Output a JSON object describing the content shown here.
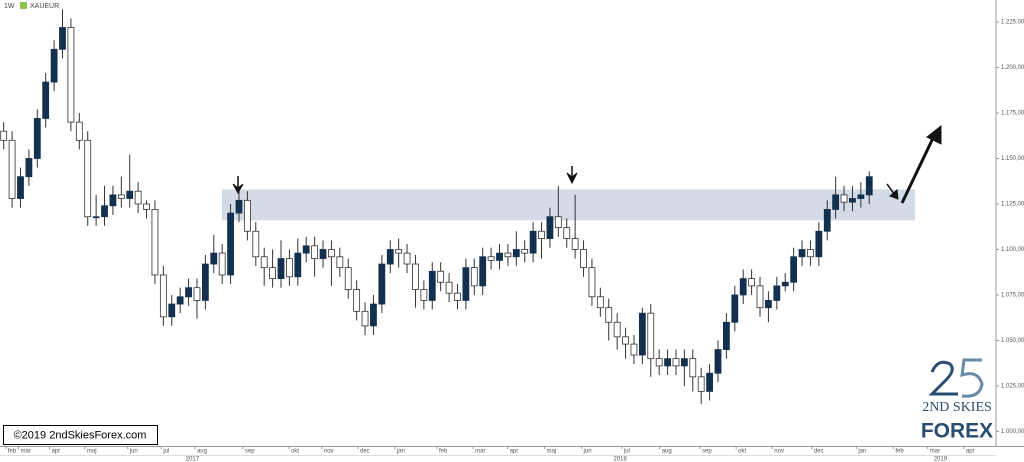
{
  "chart_data": {
    "type": "candlestick",
    "title": "1W",
    "subtitle": "XAUEUR",
    "open": [
      1165,
      1160,
      1128,
      1140,
      1150,
      1172,
      1192,
      1210,
      1222,
      1170,
      1160,
      1118,
      1118,
      1124,
      1130,
      1128,
      1132,
      1125,
      1122,
      1086,
      1063,
      1070,
      1074,
      1079,
      1072,
      1092,
      1098,
      1086,
      1120,
      1127,
      1110,
      1096,
      1090,
      1084,
      1095,
      1085,
      1098,
      1102,
      1095,
      1100,
      1096,
      1090,
      1078,
      1066,
      1058,
      1070,
      1092,
      1100,
      1098,
      1092,
      1078,
      1072,
      1088,
      1082,
      1076,
      1072,
      1090,
      1080,
      1096,
      1094,
      1098,
      1096,
      1100,
      1098,
      1110,
      1106,
      1118,
      1112,
      1106,
      1100,
      1090,
      1074,
      1068,
      1060,
      1052,
      1048,
      1042,
      1065,
      1040,
      1036,
      1040,
      1036,
      1040,
      1030,
      1022,
      1032,
      1045,
      1060,
      1075,
      1084,
      1080,
      1068,
      1072,
      1080,
      1082,
      1096,
      1100,
      1096,
      1110,
      1122,
      1130,
      1126,
      1128,
      1130
    ],
    "high": [
      1170,
      1165,
      1145,
      1155,
      1177,
      1197,
      1215,
      1232,
      1227,
      1175,
      1165,
      1130,
      1135,
      1135,
      1140,
      1152,
      1137,
      1127,
      1127,
      1091,
      1075,
      1079,
      1084,
      1084,
      1097,
      1108,
      1103,
      1125,
      1132,
      1132,
      1115,
      1101,
      1100,
      1105,
      1100,
      1106,
      1107,
      1107,
      1105,
      1105,
      1101,
      1095,
      1083,
      1071,
      1075,
      1097,
      1105,
      1106,
      1103,
      1097,
      1083,
      1093,
      1093,
      1087,
      1081,
      1095,
      1095,
      1101,
      1101,
      1103,
      1103,
      1110,
      1105,
      1115,
      1115,
      1123,
      1135,
      1117,
      1130,
      1105,
      1095,
      1079,
      1073,
      1065,
      1057,
      1053,
      1068,
      1070,
      1045,
      1045,
      1045,
      1045,
      1045,
      1035,
      1037,
      1050,
      1065,
      1080,
      1089,
      1089,
      1085,
      1077,
      1085,
      1087,
      1101,
      1105,
      1105,
      1115,
      1127,
      1140,
      1135,
      1135,
      1137,
      1143
    ],
    "low": [
      1155,
      1123,
      1123,
      1135,
      1145,
      1167,
      1187,
      1205,
      1165,
      1155,
      1113,
      1113,
      1113,
      1119,
      1123,
      1123,
      1120,
      1117,
      1081,
      1058,
      1058,
      1065,
      1069,
      1062,
      1067,
      1087,
      1081,
      1081,
      1115,
      1105,
      1091,
      1080,
      1079,
      1079,
      1080,
      1080,
      1093,
      1085,
      1090,
      1080,
      1085,
      1073,
      1061,
      1053,
      1053,
      1065,
      1087,
      1090,
      1087,
      1068,
      1067,
      1067,
      1077,
      1071,
      1067,
      1067,
      1075,
      1075,
      1089,
      1089,
      1091,
      1091,
      1093,
      1093,
      1095,
      1101,
      1107,
      1101,
      1095,
      1085,
      1069,
      1063,
      1050,
      1045,
      1040,
      1037,
      1037,
      1030,
      1031,
      1031,
      1031,
      1025,
      1022,
      1015,
      1017,
      1027,
      1040,
      1055,
      1070,
      1075,
      1063,
      1060,
      1067,
      1077,
      1077,
      1091,
      1091,
      1091,
      1105,
      1117,
      1121,
      1121,
      1123,
      1125
    ],
    "close": [
      1160,
      1128,
      1140,
      1150,
      1172,
      1192,
      1210,
      1222,
      1170,
      1160,
      1118,
      1118,
      1124,
      1130,
      1128,
      1132,
      1125,
      1122,
      1086,
      1063,
      1070,
      1074,
      1079,
      1072,
      1092,
      1098,
      1086,
      1120,
      1127,
      1110,
      1096,
      1090,
      1084,
      1095,
      1085,
      1098,
      1102,
      1095,
      1100,
      1096,
      1090,
      1078,
      1066,
      1058,
      1070,
      1092,
      1100,
      1098,
      1092,
      1078,
      1072,
      1088,
      1082,
      1076,
      1072,
      1090,
      1080,
      1096,
      1094,
      1098,
      1096,
      1100,
      1098,
      1110,
      1106,
      1118,
      1112,
      1106,
      1100,
      1090,
      1074,
      1068,
      1060,
      1052,
      1048,
      1042,
      1065,
      1040,
      1036,
      1040,
      1036,
      1040,
      1030,
      1022,
      1032,
      1045,
      1060,
      1075,
      1084,
      1080,
      1068,
      1072,
      1080,
      1082,
      1096,
      1100,
      1096,
      1110,
      1122,
      1130,
      1126,
      1128,
      1130,
      1140
    ],
    "up_color": "#13304f",
    "down_color": "#ffffff",
    "zone": {
      "low": 1116,
      "high": 1133,
      "color": "#d3dce6"
    },
    "ylim": [
      992,
      1237.1
    ],
    "yticks": [
      {
        "value": 1000,
        "label": "1.000,00"
      },
      {
        "value": 1025,
        "label": "1.025,00"
      },
      {
        "value": 1050,
        "label": "1.050,00"
      },
      {
        "value": 1075,
        "label": "1.075,00"
      },
      {
        "value": 1100,
        "label": "1.100,00"
      },
      {
        "value": 1125,
        "label": "1.125,00"
      },
      {
        "value": 1150,
        "label": "1.150,00"
      },
      {
        "value": 1175,
        "label": "1.175,00"
      },
      {
        "value": 1200,
        "label": "1.200,00"
      },
      {
        "value": 1225,
        "label": "1.225,00"
      }
    ],
    "xlim": [
      -0.2,
      118.2
    ],
    "xticks": [
      {
        "value": 0.5,
        "label": "feb"
      },
      {
        "value": 2.0,
        "label": "mar"
      },
      {
        "value": 5.7,
        "label": "apr"
      },
      {
        "value": 9.9,
        "label": "maj"
      },
      {
        "value": 15.0,
        "label": "jun"
      },
      {
        "value": 19.0,
        "label": "jul"
      },
      {
        "value": 23.0,
        "label": "aug"
      },
      {
        "value": 28.7,
        "label": "sep"
      },
      {
        "value": 34.2,
        "label": "okt"
      },
      {
        "value": 38.1,
        "label": "nov"
      },
      {
        "value": 42.4,
        "label": "dec"
      },
      {
        "value": 46.8,
        "label": "jan"
      },
      {
        "value": 51.8,
        "label": "feb"
      },
      {
        "value": 56.1,
        "label": "mar"
      },
      {
        "value": 60.2,
        "label": "apr"
      },
      {
        "value": 64.6,
        "label": "maj"
      },
      {
        "value": 69.0,
        "label": "jun"
      },
      {
        "value": 73.8,
        "label": "jul"
      },
      {
        "value": 78.3,
        "label": "aug"
      },
      {
        "value": 83.1,
        "label": "sep"
      },
      {
        "value": 87.4,
        "label": "okt"
      },
      {
        "value": 91.7,
        "label": "nov"
      },
      {
        "value": 96.4,
        "label": "dec"
      },
      {
        "value": 101.7,
        "label": "jan"
      },
      {
        "value": 106.1,
        "label": "feb"
      },
      {
        "value": 110.2,
        "label": "mar"
      },
      {
        "value": 114.5,
        "label": "apr"
      }
    ],
    "year_ticks": [
      {
        "value": 22.7,
        "label": "2017"
      },
      {
        "value": 73.6,
        "label": "2018"
      },
      {
        "value": 111.7,
        "label": "2019"
      }
    ],
    "copyright": "©2019 2ndSkiesForex.com",
    "logo_top": "2ND SKIES",
    "logo_bottom": "FOREX"
  }
}
